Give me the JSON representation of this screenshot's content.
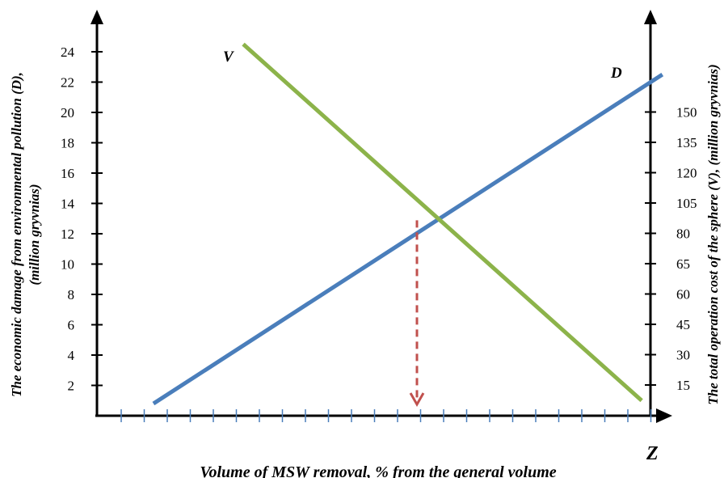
{
  "chart_data": {
    "type": "line",
    "title": "",
    "xlabel": "Volume of MSW  removal, % from the general volume",
    "x_axis_end_label": "Z",
    "ylabel_left": "The economic damage from environmental pollution (D),",
    "ylabel_left_unit": "(million gryvnias)",
    "ylabel_right": "The total operation cost of the sphere (V), (million gryvnias)",
    "left_ticks": [
      "2",
      "4",
      "6",
      "8",
      "10",
      "12",
      "14",
      "16",
      "18",
      "20",
      "22",
      "24"
    ],
    "left_tick_values": [
      2,
      4,
      6,
      8,
      10,
      12,
      14,
      16,
      18,
      20,
      22,
      24
    ],
    "right_ticks": [
      "15",
      "30",
      "45",
      "60",
      "65",
      "80",
      "105",
      "120",
      "135",
      "150"
    ],
    "x_tick_count": 24,
    "ylim_left": [
      0,
      24
    ],
    "series": [
      {
        "name": "D",
        "axis": "left",
        "color": "#4a7ebb",
        "x": [
          2,
          24
        ],
        "y": [
          0.8,
          22.5
        ]
      },
      {
        "name": "V",
        "axis": "left",
        "color": "#8cb34a",
        "x": [
          6,
          24
        ],
        "y": [
          24.5,
          1.0
        ]
      }
    ],
    "intersection_marker": {
      "x": 14,
      "y": 13.1,
      "color": "#c0504d",
      "style": "dashed-arrow-down"
    },
    "grid": false,
    "legend": "none"
  }
}
